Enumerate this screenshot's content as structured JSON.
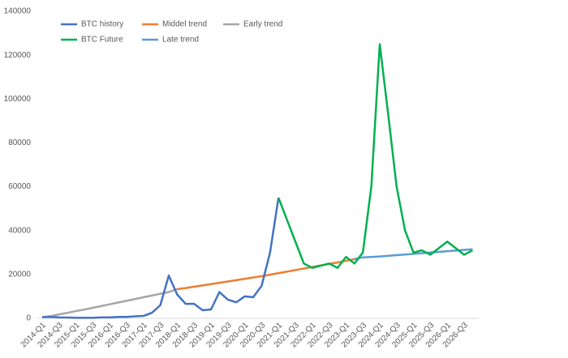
{
  "chart_data": {
    "type": "line",
    "categories": [
      "2014-Q1",
      null,
      "2014-Q3",
      null,
      "2015-Q1",
      null,
      "2015-Q3",
      null,
      "2016-Q1",
      null,
      "2016-Q3",
      null,
      "2017-Q1",
      null,
      "2017-Q3",
      null,
      "2018-Q1",
      null,
      "2018-Q3",
      null,
      "2019-Q1",
      null,
      "2019-Q3",
      null,
      "2020-Q1",
      null,
      "2020-Q3",
      null,
      "2021-Q1",
      null,
      "2021-Q3",
      null,
      "2022-Q1",
      null,
      "2022-Q3",
      null,
      "2023-Q1",
      null,
      "2023-Q3",
      null,
      "2024-Q1",
      null,
      "2024-Q3",
      null,
      "2025-Q1",
      null,
      "2025-Q3",
      null,
      "2026-Q1",
      null,
      "2026-Q3",
      null
    ],
    "series": [
      {
        "name": "BTC history",
        "color": "#4472c4",
        "values": [
          600,
          600,
          400,
          350,
          250,
          250,
          250,
          400,
          400,
          650,
          650,
          900,
          1100,
          2500,
          6000,
          19500,
          10800,
          6600,
          6600,
          3700,
          4000,
          12000,
          8500,
          7300,
          10000,
          9600,
          14800,
          30000,
          55000,
          null,
          null,
          null,
          null,
          null,
          null,
          null,
          null,
          null,
          null,
          null,
          null,
          null,
          null,
          null,
          null,
          null,
          null,
          null,
          null,
          null,
          null,
          null
        ]
      },
      {
        "name": "Middel trend",
        "color": "#ed7d31",
        "values": [
          null,
          null,
          null,
          null,
          null,
          null,
          null,
          null,
          null,
          null,
          null,
          null,
          null,
          null,
          null,
          null,
          13300,
          13800,
          14400,
          15000,
          15600,
          16200,
          16800,
          17400,
          18000,
          18600,
          19200,
          19900,
          20600,
          21300,
          22000,
          22700,
          23400,
          24100,
          24800,
          25500,
          26200,
          27000,
          null,
          null,
          null,
          null,
          null,
          null,
          null,
          null,
          null,
          null,
          null,
          null,
          null,
          null
        ]
      },
      {
        "name": "Early trend",
        "color": "#a5a5a5",
        "values": [
          500,
          1000,
          1800,
          2500,
          3300,
          4000,
          4800,
          5600,
          6400,
          7200,
          8000,
          8800,
          9600,
          10400,
          11200,
          12000,
          13300,
          null,
          null,
          null,
          null,
          null,
          null,
          null,
          null,
          null,
          null,
          null,
          null,
          null,
          null,
          null,
          null,
          null,
          null,
          null,
          null,
          null,
          null,
          null,
          null,
          null,
          null,
          null,
          null,
          null,
          null,
          null,
          null,
          null,
          null,
          null
        ]
      },
      {
        "name": "BTC Future",
        "color": "#00b050",
        "values": [
          null,
          null,
          null,
          null,
          null,
          null,
          null,
          null,
          null,
          null,
          null,
          null,
          null,
          null,
          null,
          null,
          null,
          null,
          null,
          null,
          null,
          null,
          null,
          null,
          null,
          null,
          null,
          null,
          55000,
          45000,
          35000,
          25000,
          23000,
          24000,
          25000,
          23000,
          28000,
          25000,
          30000,
          60000,
          125000,
          93000,
          60000,
          40000,
          30000,
          31000,
          29000,
          32000,
          35000,
          32000,
          29000,
          31000
        ]
      },
      {
        "name": "Late trend",
        "color": "#5b9bd5",
        "values": [
          null,
          null,
          null,
          null,
          null,
          null,
          null,
          null,
          null,
          null,
          null,
          null,
          null,
          null,
          null,
          null,
          null,
          null,
          null,
          null,
          null,
          null,
          null,
          null,
          null,
          null,
          null,
          null,
          null,
          null,
          null,
          null,
          null,
          null,
          null,
          null,
          null,
          27000,
          27800,
          28000,
          28200,
          28500,
          28800,
          29100,
          29400,
          29700,
          30000,
          30300,
          30600,
          30900,
          31200,
          31500
        ]
      }
    ],
    "ylim": [
      0,
      140000
    ],
    "yticks": [
      0,
      20000,
      40000,
      60000,
      80000,
      100000,
      120000,
      140000
    ],
    "grid": false,
    "legend": "top-left"
  }
}
